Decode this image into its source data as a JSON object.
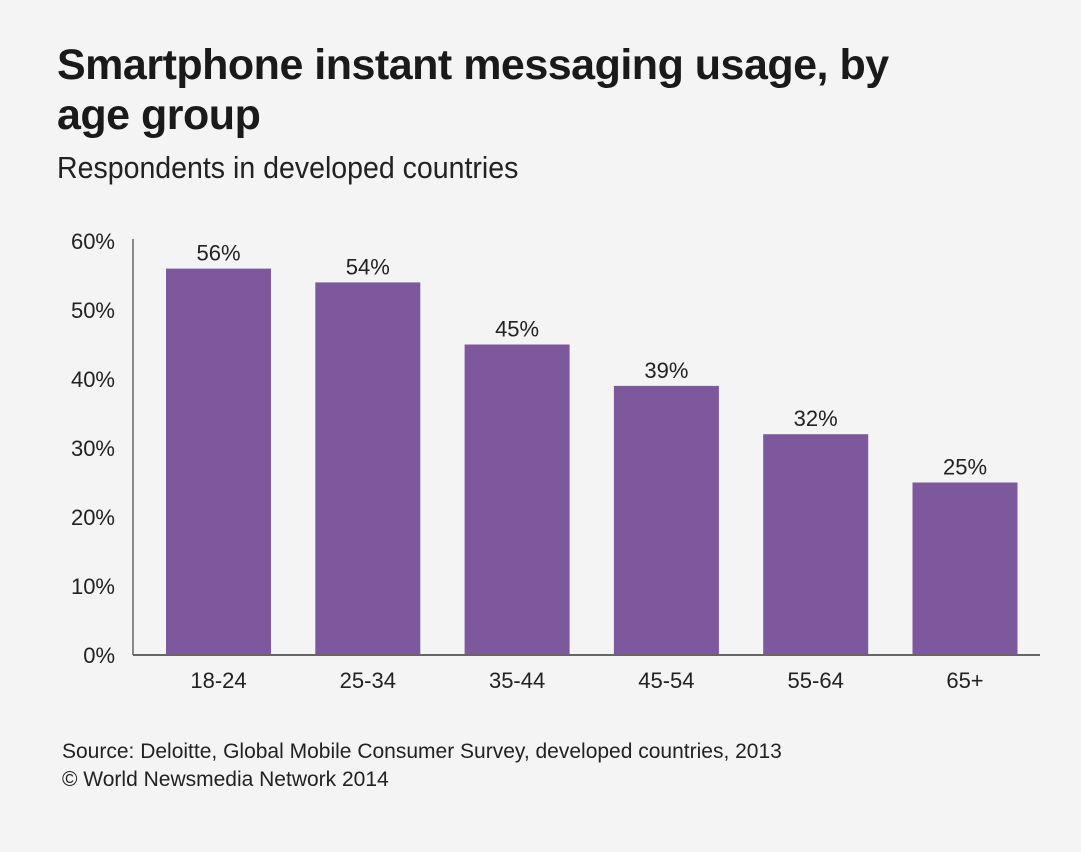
{
  "chart_data": {
    "type": "bar",
    "title": "Smartphone instant messaging usage, by age group",
    "subtitle": "Respondents in developed countries",
    "categories": [
      "18-24",
      "25-34",
      "35-44",
      "45-54",
      "55-64",
      "65+"
    ],
    "values": [
      56,
      54,
      45,
      39,
      32,
      25
    ],
    "data_labels": [
      "56%",
      "54%",
      "45%",
      "39%",
      "32%",
      "25%"
    ],
    "xlabel": "",
    "ylabel": "",
    "ylim": [
      0,
      60
    ],
    "yticks": [
      0,
      10,
      20,
      30,
      40,
      50,
      60
    ],
    "ytick_labels": [
      "0%",
      "10%",
      "20%",
      "30%",
      "40%",
      "50%",
      "60%"
    ],
    "grid": false,
    "bar_color": "#7e589c"
  },
  "footer": {
    "source": "Source: Deloitte, Global Mobile Consumer Survey, developed countries, 2013",
    "copyright": "© World Newsmedia Network 2014"
  }
}
